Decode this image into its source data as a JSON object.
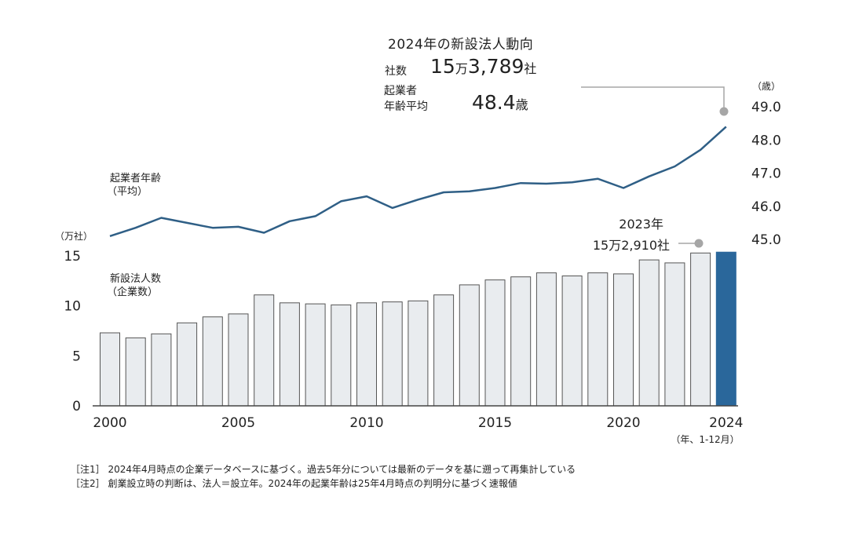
{
  "header": {
    "title": "2024年の新設法人動向",
    "count_label": "社数",
    "count_main": "15",
    "count_unit1": "万",
    "count_rest": "3,789",
    "count_unit2": "社",
    "age_label_line1": "起業者",
    "age_label_line2": "年齢平均",
    "age_value": "48.4",
    "age_unit": "歳"
  },
  "annotations": {
    "line_label_1": "起業者年齢",
    "line_label_2": "（平均）",
    "bar_label_1": "新設法人数",
    "bar_label_2": "（企業数）",
    "callout_2023_year": "2023年",
    "callout_2023_value": "15万2,910社"
  },
  "notes": [
    "［注1］ 2024年4月時点の企業データベースに基づく。過去5年分については最新のデータを基に遡って再集計している",
    "［注2］ 創業設立時の判断は、法人＝設立年。2024年の起業年齢は25年4月時点の判明分に基づく速報値"
  ],
  "colors": {
    "bar_fill": "#e9ecef",
    "bar_stroke": "#555555",
    "bar_highlight": "#2a679b",
    "line": "#2f5f86",
    "marker": "#a6a6a6",
    "callout": "#a6a6a6",
    "axis": "#444444"
  },
  "chart_data": {
    "type": "bar",
    "x": [
      2000,
      2001,
      2002,
      2003,
      2004,
      2005,
      2006,
      2007,
      2008,
      2009,
      2010,
      2011,
      2012,
      2013,
      2014,
      2015,
      2016,
      2017,
      2018,
      2019,
      2020,
      2021,
      2022,
      2023,
      2024
    ],
    "x_tick_labels": [
      "2000",
      "2005",
      "2010",
      "2015",
      "2020",
      "2024"
    ],
    "x_unit": "（年、1-12月）",
    "series": [
      {
        "name": "新設法人数（企業数）",
        "type": "bar",
        "axis": "left",
        "values": [
          7.3,
          6.8,
          7.2,
          8.3,
          8.9,
          9.2,
          11.1,
          10.3,
          10.2,
          10.1,
          10.3,
          10.4,
          10.5,
          11.1,
          12.1,
          12.6,
          12.9,
          13.3,
          13.0,
          13.3,
          13.2,
          14.6,
          14.3,
          15.29,
          15.38
        ],
        "highlight_index": 24
      },
      {
        "name": "起業者年齢（平均）",
        "type": "line",
        "axis": "right",
        "values": [
          45.1,
          45.35,
          45.65,
          45.5,
          45.35,
          45.38,
          45.2,
          45.55,
          45.7,
          46.15,
          46.3,
          45.95,
          46.2,
          46.42,
          46.45,
          46.55,
          46.7,
          46.68,
          46.72,
          46.83,
          46.55,
          46.9,
          47.2,
          47.7,
          48.4
        ]
      }
    ],
    "left_axis": {
      "unit": "（万社）",
      "ticks": [
        0,
        5,
        10,
        15
      ],
      "tick_labels": [
        "0",
        "5",
        "10",
        "15"
      ],
      "range": [
        0,
        15
      ]
    },
    "right_axis": {
      "unit": "（歳）",
      "ticks": [
        45.0,
        46.0,
        47.0,
        48.0,
        49.0
      ],
      "tick_labels": [
        "45.0",
        "46.0",
        "47.0",
        "48.0",
        "49.0"
      ],
      "range": [
        45.0,
        49.0
      ]
    },
    "grid": false,
    "legend": "none"
  }
}
